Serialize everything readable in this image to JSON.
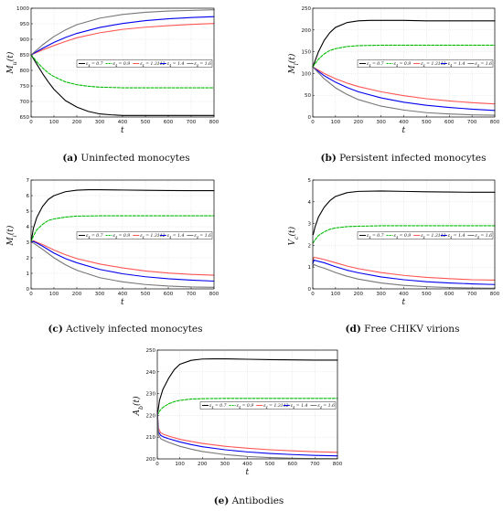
{
  "chart_data": [
    {
      "type": "line",
      "panel": "a",
      "caption_letter": "(a)",
      "caption_text": " Uninfected monocytes",
      "ylabel": "M_u(t)",
      "xlabel": "t",
      "xlim": [
        0,
        800
      ],
      "ylim": [
        650,
        1000
      ],
      "xticks": [
        0,
        100,
        200,
        300,
        400,
        500,
        600,
        700,
        800
      ],
      "yticks": [
        650,
        700,
        750,
        800,
        850,
        900,
        950,
        1000
      ],
      "grid": true,
      "legend_position": "center-right",
      "series": [
        {
          "name": "ε_4 = 0.7",
          "color": "#000000",
          "dash": "solid",
          "x": [
            0,
            25,
            50,
            75,
            100,
            150,
            200,
            250,
            300,
            350,
            400,
            500,
            600,
            700,
            800
          ],
          "y": [
            850,
            820,
            790,
            763,
            739,
            703,
            682,
            668,
            660,
            657,
            655,
            655,
            655,
            655,
            655
          ]
        },
        {
          "name": "ε_4 = 0.9",
          "color": "#00bb00",
          "dash": "dashed",
          "x": [
            0,
            25,
            50,
            75,
            100,
            150,
            200,
            250,
            300,
            350,
            400,
            500,
            600,
            700,
            800
          ],
          "y": [
            850,
            828,
            808,
            792,
            780,
            763,
            754,
            749,
            746,
            745,
            744,
            744,
            744,
            744,
            744
          ]
        },
        {
          "name": "ε_4 = 1.3112",
          "color": "#ff5555",
          "dash": "solid",
          "x": [
            0,
            50,
            100,
            150,
            200,
            300,
            400,
            500,
            600,
            700,
            800
          ],
          "y": [
            850,
            866,
            880,
            893,
            905,
            921,
            932,
            939,
            944,
            948,
            951
          ]
        },
        {
          "name": "ε_4 = 1.4",
          "color": "#0000ee",
          "dash": "solid",
          "x": [
            0,
            50,
            100,
            150,
            200,
            300,
            400,
            500,
            600,
            700,
            800
          ],
          "y": [
            850,
            871,
            890,
            906,
            919,
            938,
            951,
            960,
            966,
            970,
            973
          ]
        },
        {
          "name": "ε_4 = 1.6",
          "color": "#777777",
          "dash": "solid",
          "x": [
            0,
            50,
            100,
            150,
            200,
            300,
            400,
            500,
            600,
            700,
            800
          ],
          "y": [
            850,
            882,
            909,
            930,
            947,
            968,
            980,
            987,
            991,
            993,
            995
          ]
        }
      ]
    },
    {
      "type": "line",
      "panel": "b",
      "caption_letter": "(b)",
      "caption_text": " Persistent infected monocytes",
      "ylabel": "M_l(t)",
      "xlabel": "t",
      "xlim": [
        0,
        800
      ],
      "ylim": [
        0,
        250
      ],
      "xticks": [
        0,
        100,
        200,
        300,
        400,
        500,
        600,
        700,
        800
      ],
      "yticks": [
        0,
        50,
        100,
        150,
        200,
        250
      ],
      "grid": true,
      "legend_position": "center-right",
      "series": [
        {
          "name": "ε_4 = 0.7",
          "color": "#000000",
          "dash": "solid",
          "x": [
            0,
            25,
            50,
            75,
            100,
            150,
            200,
            250,
            300,
            400,
            500,
            600,
            700,
            800
          ],
          "y": [
            115,
            150,
            176,
            194,
            206,
            217,
            221,
            222,
            222,
            222,
            221,
            221,
            221,
            221
          ]
        },
        {
          "name": "ε_4 = 0.9",
          "color": "#00bb00",
          "dash": "dashed",
          "x": [
            0,
            25,
            50,
            75,
            100,
            150,
            200,
            300,
            400,
            500,
            600,
            700,
            800
          ],
          "y": [
            115,
            133,
            145,
            153,
            157,
            162,
            164,
            165,
            165,
            165,
            165,
            165,
            165
          ]
        },
        {
          "name": "ε_4 = 1.3112",
          "color": "#ff5555",
          "dash": "solid",
          "x": [
            0,
            50,
            100,
            150,
            200,
            300,
            400,
            500,
            600,
            700,
            800
          ],
          "y": [
            115,
            100,
            88,
            78,
            70,
            58,
            49,
            42,
            37,
            33,
            30
          ]
        },
        {
          "name": "ε_4 = 1.4",
          "color": "#0000ee",
          "dash": "solid",
          "x": [
            0,
            50,
            100,
            150,
            200,
            300,
            400,
            500,
            600,
            700,
            800
          ],
          "y": [
            115,
            95,
            80,
            68,
            58,
            44,
            34,
            27,
            22,
            18,
            15
          ]
        },
        {
          "name": "ε_4 = 1.6",
          "color": "#777777",
          "dash": "solid",
          "x": [
            0,
            50,
            100,
            150,
            200,
            300,
            400,
            500,
            600,
            700,
            800
          ],
          "y": [
            115,
            88,
            67,
            52,
            40,
            25,
            16,
            10,
            7,
            5,
            4
          ]
        }
      ]
    },
    {
      "type": "line",
      "panel": "c",
      "caption_letter": "(c)",
      "caption_text": " Actively infected monocytes",
      "ylabel": "M_i(t)",
      "xlabel": "t",
      "xlim": [
        0,
        800
      ],
      "ylim": [
        0,
        7
      ],
      "xticks": [
        0,
        100,
        200,
        300,
        400,
        500,
        600,
        700,
        800
      ],
      "yticks": [
        0,
        1,
        2,
        3,
        4,
        5,
        6,
        7
      ],
      "grid": true,
      "legend_position": "center-right",
      "series": [
        {
          "name": "ε_4 = 0.7",
          "color": "#000000",
          "dash": "solid",
          "x": [
            0,
            10,
            25,
            50,
            75,
            100,
            150,
            200,
            250,
            300,
            400,
            500,
            600,
            700,
            800
          ],
          "y": [
            3.0,
            3.9,
            4.6,
            5.3,
            5.75,
            6.0,
            6.25,
            6.35,
            6.38,
            6.38,
            6.36,
            6.34,
            6.33,
            6.32,
            6.32
          ]
        },
        {
          "name": "ε_4 = 0.9",
          "color": "#00bb00",
          "dash": "dashed",
          "x": [
            0,
            10,
            25,
            50,
            75,
            100,
            150,
            200,
            300,
            400,
            500,
            600,
            700,
            800
          ],
          "y": [
            3.0,
            3.4,
            3.8,
            4.15,
            4.4,
            4.5,
            4.62,
            4.68,
            4.7,
            4.7,
            4.7,
            4.7,
            4.7,
            4.7
          ]
        },
        {
          "name": "ε_4 = 1.3112",
          "color": "#ff5555",
          "dash": "solid",
          "x": [
            0,
            10,
            25,
            50,
            100,
            150,
            200,
            300,
            400,
            500,
            600,
            700,
            800
          ],
          "y": [
            3.0,
            3.1,
            3.0,
            2.85,
            2.5,
            2.2,
            1.95,
            1.6,
            1.35,
            1.15,
            1.02,
            0.93,
            0.88
          ]
        },
        {
          "name": "ε_4 = 1.4",
          "color": "#0000ee",
          "dash": "solid",
          "x": [
            0,
            10,
            25,
            50,
            100,
            150,
            200,
            300,
            400,
            500,
            600,
            700,
            800
          ],
          "y": [
            3.0,
            3.05,
            2.95,
            2.75,
            2.3,
            1.95,
            1.68,
            1.25,
            0.97,
            0.78,
            0.65,
            0.56,
            0.5
          ]
        },
        {
          "name": "ε_4 = 1.6",
          "color": "#777777",
          "dash": "solid",
          "x": [
            0,
            10,
            25,
            50,
            100,
            150,
            200,
            300,
            400,
            500,
            600,
            700,
            800
          ],
          "y": [
            3.0,
            2.95,
            2.8,
            2.55,
            2.0,
            1.55,
            1.2,
            0.72,
            0.45,
            0.28,
            0.18,
            0.12,
            0.1
          ]
        }
      ]
    },
    {
      "type": "line",
      "panel": "d",
      "caption_letter": "(d)",
      "caption_text": " Free CHIKV virions",
      "ylabel": "V_c(t)",
      "xlabel": "t",
      "xlim": [
        0,
        800
      ],
      "ylim": [
        0,
        5
      ],
      "xticks": [
        0,
        100,
        200,
        300,
        400,
        500,
        600,
        700,
        800
      ],
      "yticks": [
        0,
        1,
        2,
        3,
        4,
        5
      ],
      "grid": true,
      "legend_position": "center-right",
      "series": [
        {
          "name": "ε_4 = 0.7",
          "color": "#000000",
          "dash": "solid",
          "x": [
            0,
            2,
            10,
            25,
            50,
            75,
            100,
            150,
            200,
            300,
            400,
            500,
            600,
            700,
            800
          ],
          "y": [
            2.5,
            2.5,
            2.85,
            3.3,
            3.75,
            4.05,
            4.25,
            4.42,
            4.48,
            4.5,
            4.48,
            4.46,
            4.45,
            4.44,
            4.44
          ]
        },
        {
          "name": "ε_4 = 0.9",
          "color": "#00bb00",
          "dash": "dashed",
          "x": [
            0,
            10,
            25,
            50,
            75,
            100,
            150,
            200,
            300,
            400,
            500,
            600,
            700,
            800
          ],
          "y": [
            2.1,
            2.25,
            2.45,
            2.62,
            2.74,
            2.8,
            2.86,
            2.88,
            2.9,
            2.9,
            2.9,
            2.9,
            2.9,
            2.9
          ]
        },
        {
          "name": "ε_4 = 1.3112",
          "color": "#ff5555",
          "dash": "solid",
          "x": [
            0,
            5,
            20,
            50,
            100,
            150,
            200,
            300,
            400,
            500,
            600,
            700,
            800
          ],
          "y": [
            1.3,
            1.45,
            1.42,
            1.35,
            1.2,
            1.05,
            0.93,
            0.75,
            0.62,
            0.53,
            0.47,
            0.42,
            0.4
          ]
        },
        {
          "name": "ε_4 = 1.4",
          "color": "#0000ee",
          "dash": "solid",
          "x": [
            0,
            5,
            20,
            50,
            100,
            150,
            200,
            300,
            400,
            500,
            600,
            700,
            800
          ],
          "y": [
            1.15,
            1.32,
            1.28,
            1.2,
            1.02,
            0.86,
            0.74,
            0.55,
            0.42,
            0.33,
            0.27,
            0.23,
            0.2
          ]
        },
        {
          "name": "ε_4 = 1.6",
          "color": "#777777",
          "dash": "solid",
          "x": [
            0,
            5,
            20,
            50,
            100,
            150,
            200,
            300,
            400,
            500,
            600,
            700,
            800
          ],
          "y": [
            1.0,
            1.12,
            1.05,
            0.95,
            0.75,
            0.58,
            0.45,
            0.27,
            0.16,
            0.1,
            0.06,
            0.04,
            0.03
          ]
        }
      ]
    },
    {
      "type": "line",
      "panel": "e",
      "caption_letter": "(e)",
      "caption_text": " Antibodies",
      "ylabel": "A_b(t)",
      "xlabel": "t",
      "xlim": [
        0,
        800
      ],
      "ylim": [
        200,
        250
      ],
      "xticks": [
        0,
        100,
        200,
        300,
        400,
        500,
        600,
        700,
        800
      ],
      "yticks": [
        200,
        210,
        220,
        230,
        240,
        250
      ],
      "grid": true,
      "legend_position": "center-right",
      "series": [
        {
          "name": "ε_4 = 0.7",
          "color": "#000000",
          "dash": "solid",
          "x": [
            0,
            10,
            25,
            50,
            75,
            100,
            150,
            200,
            250,
            300,
            400,
            500,
            600,
            700,
            800
          ],
          "y": [
            220,
            227,
            232,
            237,
            241,
            243.5,
            245.3,
            245.9,
            246,
            246,
            245.8,
            245.6,
            245.5,
            245.4,
            245.4
          ]
        },
        {
          "name": "ε_4 = 0.9",
          "color": "#00bb00",
          "dash": "dashed",
          "x": [
            0,
            10,
            25,
            50,
            75,
            100,
            150,
            200,
            300,
            400,
            500,
            600,
            700,
            800
          ],
          "y": [
            220,
            222,
            223.7,
            225.3,
            226.3,
            226.9,
            227.5,
            227.7,
            227.8,
            227.8,
            227.8,
            227.8,
            227.8,
            227.8
          ]
        },
        {
          "name": "ε_4 = 1.3112",
          "color": "#ff5555",
          "dash": "solid",
          "x": [
            0,
            5,
            15,
            30,
            50,
            100,
            150,
            200,
            300,
            400,
            500,
            600,
            700,
            800
          ],
          "y": [
            222,
            214,
            212,
            211.2,
            210.5,
            209,
            208,
            207.1,
            205.8,
            204.9,
            204.2,
            203.7,
            203.3,
            203
          ]
        },
        {
          "name": "ε_4 = 1.4",
          "color": "#0000ee",
          "dash": "solid",
          "x": [
            0,
            5,
            15,
            30,
            50,
            100,
            150,
            200,
            300,
            400,
            500,
            600,
            700,
            800
          ],
          "y": [
            222,
            212.5,
            210.8,
            210,
            209.3,
            207.8,
            206.6,
            205.6,
            204.2,
            203.2,
            202.5,
            202,
            201.6,
            201.4
          ]
        },
        {
          "name": "ε_4 = 1.6",
          "color": "#777777",
          "dash": "solid",
          "x": [
            0,
            5,
            15,
            30,
            50,
            100,
            150,
            200,
            300,
            400,
            500,
            600,
            700,
            800
          ],
          "y": [
            222,
            211,
            209.3,
            208.5,
            207.6,
            205.8,
            204.5,
            203.4,
            202,
            201.1,
            200.6,
            200.3,
            200.15,
            200.1
          ]
        }
      ]
    }
  ]
}
